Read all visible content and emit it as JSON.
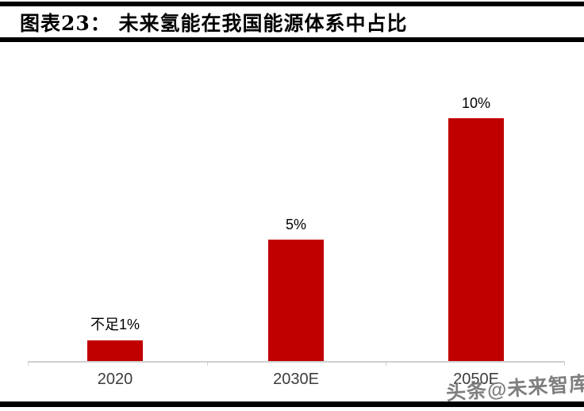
{
  "header": {
    "title": "图表23：  未来氢能在我国能源体系中占比"
  },
  "chart_data": {
    "type": "bar",
    "title": "未来氢能在我国能源体系中占比",
    "categories": [
      "2020",
      "2030E",
      "2050E"
    ],
    "values": [
      0.85,
      5,
      10
    ],
    "value_labels": [
      "不足1%",
      "5%",
      "10%"
    ],
    "xlabel": "",
    "ylabel": "",
    "ylim": [
      0,
      10
    ],
    "grid": false,
    "legend_position": "none",
    "bar_color": "#c00000",
    "axis_color": "#d0d0d0"
  },
  "watermark": {
    "text": "头条@未来智库"
  }
}
